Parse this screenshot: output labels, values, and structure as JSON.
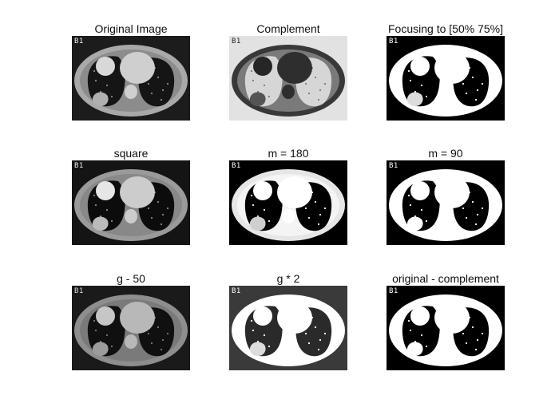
{
  "panels": [
    {
      "title": "Original Image",
      "tag": "B1",
      "variant": "original"
    },
    {
      "title": "Complement",
      "tag": "B1",
      "variant": "complement"
    },
    {
      "title": "Focusing to [50% 75%]",
      "tag": "B1",
      "variant": "threshold"
    },
    {
      "title": "square",
      "tag": "B1",
      "variant": "square"
    },
    {
      "title": "m = 180",
      "tag": "B1",
      "variant": "m180"
    },
    {
      "title": "m = 90",
      "tag": "B1",
      "variant": "m90"
    },
    {
      "title": "g - 50",
      "tag": "B1",
      "variant": "minus50"
    },
    {
      "title": "g * 2",
      "tag": "B1",
      "variant": "times2"
    },
    {
      "title": "original - complement",
      "tag": "B1",
      "variant": "diff"
    }
  ],
  "variants": {
    "original": {
      "bg": "#1c1c1c",
      "ring": "#a9a9a9",
      "tissue": "#8c8c8c",
      "lung": "#151515",
      "heart": "#cfcfcf",
      "mass": "#d8d8d8",
      "lesion": "#b0b0b0",
      "tagColor": "#eeeeee"
    },
    "complement": {
      "bg": "#e2e2e2",
      "ring": "#383838",
      "tissue": "#7a7a7a",
      "lung": "#d6d6d6",
      "heart": "#2e2e2e",
      "mass": "#262626",
      "lesion": "#555555",
      "tagColor": "#222222"
    },
    "threshold": {
      "bg": "#000000",
      "ring": "#ffffff",
      "tissue": "#ffffff",
      "lung": "#000000",
      "heart": "#ffffff",
      "mass": "#ffffff",
      "lesion": "#dddddd",
      "tagColor": "#ffffff"
    },
    "square": {
      "bg": "#141414",
      "ring": "#9a9a9a",
      "tissue": "#888888",
      "lung": "#0c0c0c",
      "heart": "#cccccc",
      "mass": "#e6e6e6",
      "lesion": "#bbbbbb",
      "tagColor": "#eeeeee"
    },
    "m180": {
      "bg": "#000000",
      "ring": "#e6e6e6",
      "tissue": "#f4f4f4",
      "lung": "#000000",
      "heart": "#ffffff",
      "mass": "#ffffff",
      "lesion": "#cfcfcf",
      "tagColor": "#ffffff"
    },
    "m90": {
      "bg": "#000000",
      "ring": "#ffffff",
      "tissue": "#ffffff",
      "lung": "#000000",
      "heart": "#ffffff",
      "mass": "#ffffff",
      "lesion": "#ffffff",
      "tagColor": "#ffffff"
    },
    "minus50": {
      "bg": "#1a1a1a",
      "ring": "#8e8e8e",
      "tissue": "#7a7a7a",
      "lung": "#101010",
      "heart": "#b8b8b8",
      "mass": "#c6c6c6",
      "lesion": "#9c9c9c",
      "tagColor": "#dddddd"
    },
    "times2": {
      "bg": "#3a3a3a",
      "ring": "#ffffff",
      "tissue": "#ffffff",
      "lung": "#2a2a2a",
      "heart": "#ffffff",
      "mass": "#ffffff",
      "lesion": "#dcdcdc",
      "tagColor": "#ffffff"
    },
    "diff": {
      "bg": "#000000",
      "ring": "#ffffff",
      "tissue": "#ffffff",
      "lung": "#000000",
      "heart": "#ffffff",
      "mass": "#ffffff",
      "lesion": "#ffffff",
      "tagColor": "#ffffff"
    }
  }
}
